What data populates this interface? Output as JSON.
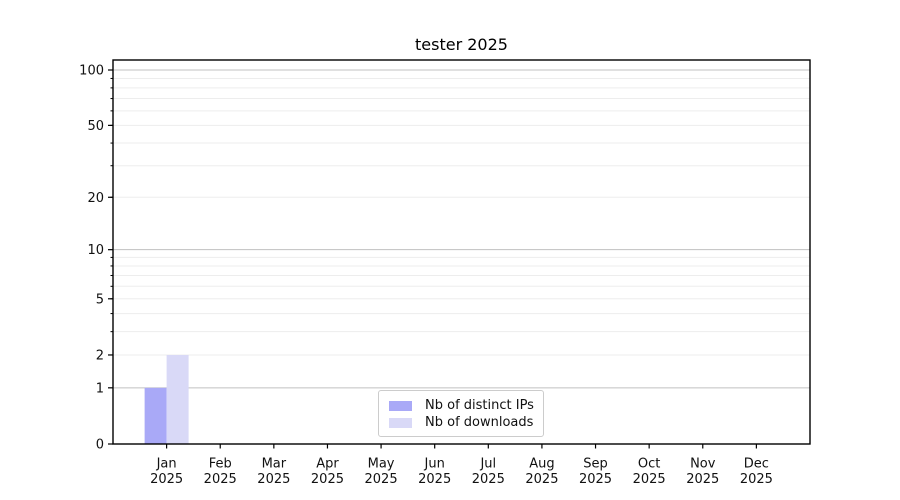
{
  "chart_data": {
    "type": "bar",
    "title": "tester 2025",
    "categories": [
      "Jan 2025",
      "Feb 2025",
      "Mar 2025",
      "Apr 2025",
      "May 2025",
      "Jun 2025",
      "Jul 2025",
      "Aug 2025",
      "Sep 2025",
      "Oct 2025",
      "Nov 2025",
      "Dec 2025"
    ],
    "series": [
      {
        "name": "Nb of distinct IPs",
        "color": "#a9a9f7",
        "values": [
          1,
          0,
          0,
          0,
          0,
          0,
          0,
          0,
          0,
          0,
          0,
          0
        ]
      },
      {
        "name": "Nb of downloads",
        "color": "#d9d9f7",
        "values": [
          2,
          0,
          0,
          0,
          0,
          0,
          0,
          0,
          0,
          0,
          0,
          0
        ]
      }
    ],
    "xlabel": "",
    "ylabel": "",
    "y_axis": {
      "scale": "log1p",
      "ticks": [
        0,
        1,
        2,
        5,
        10,
        20,
        50,
        100
      ],
      "major_gridlines": [
        1,
        10,
        100
      ],
      "minor_gridlines": [
        2,
        3,
        4,
        5,
        6,
        7,
        8,
        9,
        20,
        30,
        40,
        50,
        60,
        70,
        80,
        90
      ],
      "range": [
        0,
        113
      ]
    },
    "grid": true,
    "legend_position": "inside-bottom-center"
  },
  "colors": {
    "background": "#ffffff",
    "axis": "#000000",
    "tick_text": "#111111",
    "grid_major": "#c0c0c0",
    "grid_minor": "#ededed",
    "legend_border": "#cccccc"
  }
}
